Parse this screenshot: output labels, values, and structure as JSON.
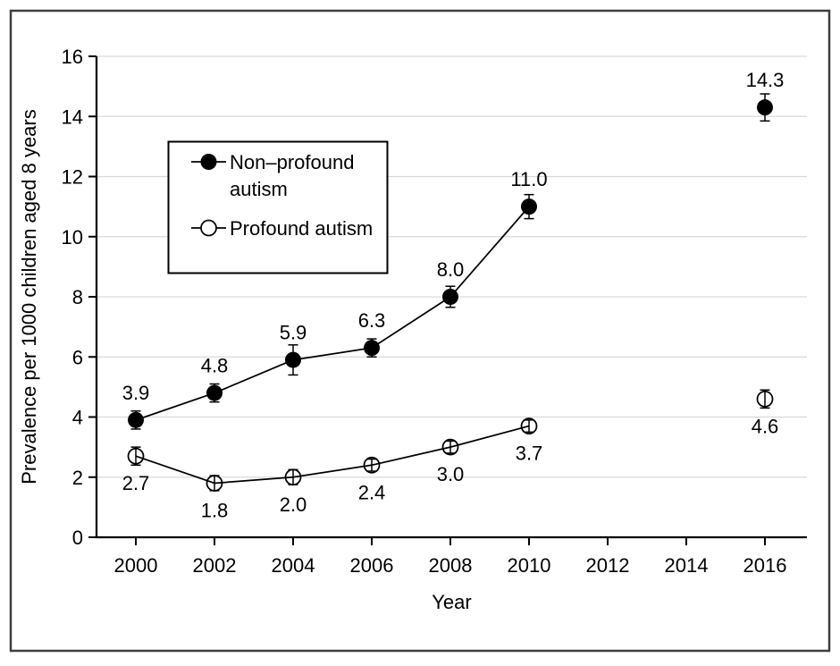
{
  "figure": {
    "background": "#ffffff",
    "border_color": "#3f3f3f",
    "grid_color": "#d9d9d9",
    "axis_color": "#000000",
    "text_color": "#000000"
  },
  "chart_data": {
    "type": "line",
    "title": "",
    "xlabel": "Year",
    "ylabel": "Prevalence per 1000 children aged 8 years",
    "xlim": [
      1999,
      2017.1
    ],
    "ylim": [
      0,
      16
    ],
    "x_ticks": [
      "2000",
      "2002",
      "2004",
      "2006",
      "2008",
      "2010",
      "2012",
      "2014",
      "2016"
    ],
    "x_tick_years": [
      2000,
      2002,
      2004,
      2006,
      2008,
      2010,
      2012,
      2014,
      2016
    ],
    "y_ticks": [
      "0",
      "2",
      "4",
      "6",
      "8",
      "10",
      "12",
      "14",
      "16"
    ],
    "y_tick_values": [
      0,
      2,
      4,
      6,
      8,
      10,
      12,
      14,
      16
    ],
    "grid": "horizontal",
    "legend_position": "upper-left-inside",
    "series": [
      {
        "name": "Non–profound autism",
        "marker": "filled-circle",
        "color": "#000000",
        "points": [
          {
            "x": 2000,
            "y": 3.9,
            "label": "3.9",
            "err": 0.3,
            "label_pos": "above"
          },
          {
            "x": 2002,
            "y": 4.8,
            "label": "4.8",
            "err": 0.3,
            "label_pos": "above"
          },
          {
            "x": 2004,
            "y": 5.9,
            "label": "5.9",
            "err": 0.5,
            "label_pos": "above"
          },
          {
            "x": 2006,
            "y": 6.3,
            "label": "6.3",
            "err": 0.3,
            "label_pos": "above"
          },
          {
            "x": 2008,
            "y": 8.0,
            "label": "8.0",
            "err": 0.35,
            "label_pos": "above"
          },
          {
            "x": 2010,
            "y": 11.0,
            "label": "11.0",
            "err": 0.4,
            "label_pos": "above"
          },
          {
            "x": 2016,
            "y": 14.3,
            "label": "14.3",
            "err": 0.45,
            "label_pos": "above",
            "disconnected": true
          }
        ]
      },
      {
        "name": "Profound autism",
        "marker": "open-circle",
        "color": "#000000",
        "points": [
          {
            "x": 2000,
            "y": 2.7,
            "label": "2.7",
            "err": 0.3,
            "label_pos": "below"
          },
          {
            "x": 2002,
            "y": 1.8,
            "label": "1.8",
            "err": 0.25,
            "label_pos": "below"
          },
          {
            "x": 2004,
            "y": 2.0,
            "label": "2.0",
            "err": 0.25,
            "label_pos": "below"
          },
          {
            "x": 2006,
            "y": 2.4,
            "label": "2.4",
            "err": 0.2,
            "label_pos": "below"
          },
          {
            "x": 2008,
            "y": 3.0,
            "label": "3.0",
            "err": 0.2,
            "label_pos": "below"
          },
          {
            "x": 2010,
            "y": 3.7,
            "label": "3.7",
            "err": 0.2,
            "label_pos": "below"
          },
          {
            "x": 2016,
            "y": 4.6,
            "label": "4.6",
            "err": 0.3,
            "label_pos": "below",
            "disconnected": true
          }
        ]
      }
    ],
    "legend": [
      {
        "marker": "filled-circle",
        "label_lines": [
          "Non–profound",
          "autism"
        ]
      },
      {
        "marker": "open-circle",
        "label_lines": [
          "Profound autism"
        ]
      }
    ]
  }
}
